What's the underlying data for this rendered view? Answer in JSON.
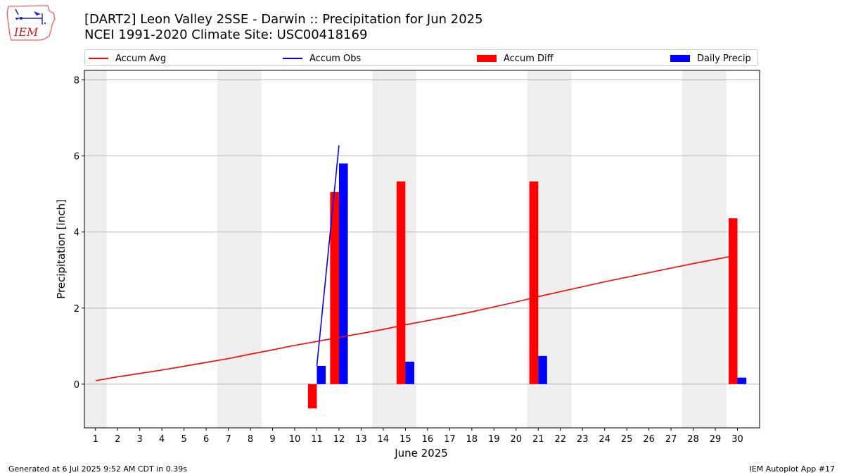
{
  "header": {
    "title_line1": "[DART2] Leon Valley 2SSE - Darwin :: Precipitation for Jun 2025",
    "title_line2": "NCEI 1991-2020 Climate Site: USC00418169"
  },
  "logo": {
    "text": "IEM",
    "icon": "iem-iowa-map-logo"
  },
  "footer": {
    "left": "Generated at 6 Jul 2025 9:52 AM CDT in 0.39s",
    "right": "IEM Autoplot App #17"
  },
  "colors": {
    "avg": "#ff0000",
    "obs": "#0000ff",
    "diff": "#ff0000",
    "daily": "#0000ff",
    "weekend_band": "#eeeeee",
    "grid": "#b0b0b0"
  },
  "legend": {
    "items": [
      {
        "label": "Accum Avg",
        "kind": "line",
        "color": "#ff0000"
      },
      {
        "label": "Accum Obs",
        "kind": "line",
        "color": "#0000ff"
      },
      {
        "label": "Accum Diff",
        "kind": "box",
        "color": "#ff0000"
      },
      {
        "label": "Daily Precip",
        "kind": "box",
        "color": "#0000ff"
      }
    ]
  },
  "chart_data": {
    "type": "bar",
    "xlabel": "June 2025",
    "ylabel": "Precipitation [inch]",
    "xlim": [
      0.5,
      31.0
    ],
    "ylim": [
      -1.15,
      8.25
    ],
    "yticks": [
      0,
      2,
      4,
      6,
      8
    ],
    "grid": "y",
    "legend_position": "top",
    "x": [
      1,
      2,
      3,
      4,
      5,
      6,
      7,
      8,
      9,
      10,
      11,
      12,
      13,
      14,
      15,
      16,
      17,
      18,
      19,
      20,
      21,
      22,
      23,
      24,
      25,
      26,
      27,
      28,
      29,
      30
    ],
    "weekend_bands": [
      [
        0.5,
        1.5
      ],
      [
        6.5,
        8.5
      ],
      [
        13.5,
        15.5
      ],
      [
        20.5,
        22.5
      ],
      [
        27.5,
        29.5
      ]
    ],
    "series": [
      {
        "name": "Accum Avg",
        "kind": "line",
        "x": [
          1,
          2,
          3,
          4,
          5,
          6,
          7,
          8,
          9,
          10,
          11,
          12,
          13,
          14,
          15,
          16,
          17,
          18,
          19,
          20,
          21,
          22,
          23,
          24,
          25,
          26,
          27,
          28,
          29,
          30
        ],
        "values": [
          0.09,
          0.19,
          0.28,
          0.37,
          0.47,
          0.57,
          0.67,
          0.79,
          0.9,
          1.02,
          1.12,
          1.23,
          1.33,
          1.44,
          1.56,
          1.67,
          1.78,
          1.9,
          2.03,
          2.16,
          2.3,
          2.43,
          2.56,
          2.69,
          2.81,
          2.93,
          3.05,
          3.17,
          3.28,
          3.39
        ]
      },
      {
        "name": "Accum Obs",
        "kind": "line",
        "x": [
          11,
          12
        ],
        "values": [
          0.48,
          6.28
        ]
      },
      {
        "name": "Accum Diff",
        "kind": "bar",
        "x": [
          11,
          12,
          15,
          21,
          30
        ],
        "values": [
          -0.64,
          5.05,
          5.33,
          5.33,
          4.36
        ]
      },
      {
        "name": "Daily Precip",
        "kind": "bar",
        "x": [
          11,
          12,
          15,
          21,
          30
        ],
        "values": [
          0.48,
          5.8,
          0.59,
          0.74,
          0.17
        ]
      }
    ]
  }
}
